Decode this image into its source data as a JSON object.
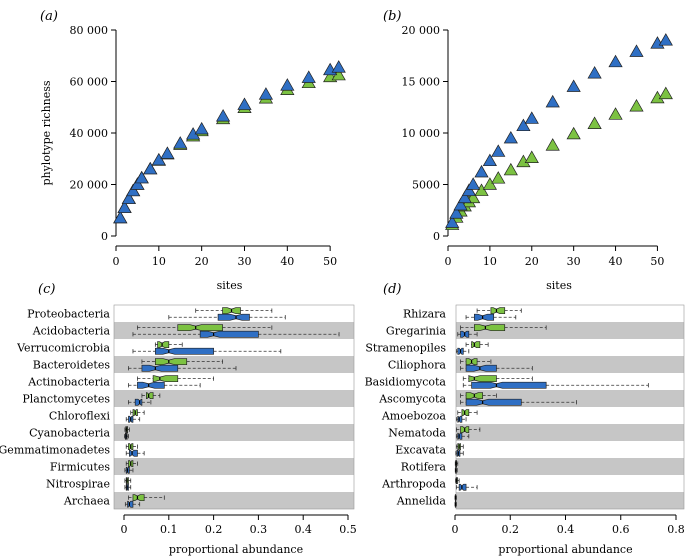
{
  "chart_data": [
    {
      "panel": "(a)",
      "type": "scatter",
      "marker": "triangle",
      "xlabel": "sites",
      "ylabel": "phylotype richness",
      "xlim": [
        0,
        53
      ],
      "ylim": [
        0,
        80000
      ],
      "xticks": [
        "0",
        "10",
        "20",
        "30",
        "40",
        "50"
      ],
      "yticks": [
        "0",
        "20 000",
        "40 000",
        "60 000",
        "80 000"
      ],
      "ytick_values": [
        0,
        20000,
        40000,
        60000,
        80000
      ],
      "xtick_values": [
        0,
        10,
        20,
        30,
        40,
        50
      ],
      "colors": [
        "#2f6fc4",
        "#7cc242"
      ],
      "series": [
        {
          "x": [
            1,
            2,
            3,
            4,
            5,
            6,
            8,
            10,
            12,
            15,
            18,
            20,
            25,
            30,
            35,
            40,
            45,
            50,
            52
          ],
          "values": [
            7000,
            11000,
            14500,
            17500,
            20000,
            22500,
            26000,
            29500,
            32000,
            36000,
            39500,
            41500,
            46500,
            51000,
            55000,
            58500,
            61500,
            64500,
            65500
          ]
        },
        {
          "x": [
            1,
            2,
            3,
            4,
            5,
            6,
            8,
            10,
            12,
            15,
            18,
            20,
            25,
            30,
            35,
            40,
            45,
            50,
            52
          ],
          "values": [
            7000,
            11000,
            14500,
            17500,
            20000,
            22500,
            26000,
            29300,
            31800,
            35500,
            38800,
            40800,
            45500,
            49800,
            53500,
            56800,
            59500,
            61800,
            62500
          ]
        }
      ]
    },
    {
      "panel": "(b)",
      "type": "scatter",
      "marker": "triangle",
      "xlabel": "sites",
      "ylabel": "",
      "xlim": [
        0,
        53
      ],
      "ylim": [
        0,
        20000
      ],
      "xticks": [
        "0",
        "10",
        "20",
        "30",
        "40",
        "50"
      ],
      "yticks": [
        "0",
        "5000",
        "10 000",
        "15 000",
        "20 000"
      ],
      "ytick_values": [
        0,
        5000,
        10000,
        15000,
        20000
      ],
      "xtick_values": [
        0,
        10,
        20,
        30,
        40,
        50
      ],
      "colors": [
        "#2f6fc4",
        "#7cc242"
      ],
      "series": [
        {
          "x": [
            1,
            2,
            3,
            4,
            5,
            6,
            8,
            10,
            12,
            15,
            18,
            20,
            25,
            30,
            35,
            40,
            45,
            50,
            52
          ],
          "values": [
            1300,
            2200,
            3000,
            3700,
            4400,
            5000,
            6200,
            7300,
            8200,
            9500,
            10700,
            11400,
            13000,
            14500,
            15800,
            16900,
            17900,
            18700,
            19000
          ]
        },
        {
          "x": [
            1,
            2,
            3,
            4,
            5,
            6,
            8,
            10,
            12,
            15,
            18,
            20,
            25,
            30,
            35,
            40,
            45,
            50,
            52
          ],
          "values": [
            1100,
            1800,
            2400,
            2900,
            3300,
            3700,
            4400,
            5000,
            5600,
            6400,
            7200,
            7600,
            8800,
            9900,
            10900,
            11800,
            12600,
            13400,
            13800
          ]
        }
      ]
    },
    {
      "panel": "(c)",
      "type": "box",
      "xlabel": "proportional abundance",
      "xlim": [
        0,
        0.5
      ],
      "xticks": [
        "0",
        "0.1",
        "0.2",
        "0.3",
        "0.4",
        "0.5"
      ],
      "xtick_values": [
        0,
        0.1,
        0.2,
        0.3,
        0.4,
        0.5
      ],
      "colors": [
        "#7cc242",
        "#2f6fc4"
      ],
      "categories": [
        "Proteobacteria",
        "Acidobacteria",
        "Verrucomicrobia",
        "Bacteroidetes",
        "Actinobacteria",
        "Planctomycetes",
        "Chloroflexi",
        "Cyanobacteria",
        "Gemmatimonadetes",
        "Firmicutes",
        "Nitrospirae",
        "Archaea"
      ],
      "boxes": [
        [
          [
            0.16,
            0.22,
            0.24,
            0.26,
            0.33
          ],
          [
            0.1,
            0.21,
            0.25,
            0.28,
            0.36
          ]
        ],
        [
          [
            0.03,
            0.12,
            0.16,
            0.22,
            0.33
          ],
          [
            0.02,
            0.17,
            0.2,
            0.3,
            0.48
          ]
        ],
        [
          [
            0.07,
            0.075,
            0.085,
            0.1,
            0.13
          ],
          [
            0.02,
            0.07,
            0.1,
            0.2,
            0.35
          ]
        ],
        [
          [
            0.04,
            0.07,
            0.1,
            0.14,
            0.22
          ],
          [
            0.01,
            0.04,
            0.07,
            0.12,
            0.25
          ]
        ],
        [
          [
            0.03,
            0.065,
            0.08,
            0.12,
            0.2
          ],
          [
            0.01,
            0.03,
            0.055,
            0.09,
            0.17
          ]
        ],
        [
          [
            0.04,
            0.05,
            0.055,
            0.065,
            0.08
          ],
          [
            0.01,
            0.025,
            0.035,
            0.04,
            0.06
          ]
        ],
        [
          [
            0.015,
            0.02,
            0.025,
            0.03,
            0.045
          ],
          [
            0.005,
            0.01,
            0.015,
            0.02,
            0.035
          ]
        ],
        [
          [
            0.002,
            0.004,
            0.006,
            0.008,
            0.012
          ],
          [
            0.001,
            0.003,
            0.005,
            0.007,
            0.01
          ]
        ],
        [
          [
            0.005,
            0.01,
            0.015,
            0.02,
            0.03
          ],
          [
            0.005,
            0.012,
            0.018,
            0.03,
            0.045
          ]
        ],
        [
          [
            0.005,
            0.01,
            0.015,
            0.02,
            0.03
          ],
          [
            0.002,
            0.005,
            0.008,
            0.012,
            0.02
          ]
        ],
        [
          [
            0.002,
            0.005,
            0.007,
            0.01,
            0.015
          ],
          [
            0.002,
            0.005,
            0.007,
            0.01,
            0.015
          ]
        ],
        [
          [
            0.01,
            0.02,
            0.03,
            0.045,
            0.09
          ],
          [
            0.003,
            0.008,
            0.012,
            0.02,
            0.035
          ]
        ]
      ]
    },
    {
      "panel": "(d)",
      "type": "box",
      "xlabel": "proportional abundance",
      "xlim": [
        0,
        0.8
      ],
      "xticks": [
        "0",
        "0.2",
        "0.4",
        "0.6",
        "0.8"
      ],
      "xtick_values": [
        0,
        0.2,
        0.4,
        0.6,
        0.8
      ],
      "colors": [
        "#7cc242",
        "#2f6fc4"
      ],
      "categories": [
        "Rhizara",
        "Gregarinia",
        "Stramenopiles",
        "Ciliophora",
        "Basidiomycota",
        "Ascomycota",
        "Amoebozoa",
        "Nematoda",
        "Excavata",
        "Rotifera",
        "Arthropoda",
        "Annelida"
      ],
      "boxes": [
        [
          [
            0.08,
            0.13,
            0.15,
            0.18,
            0.24
          ],
          [
            0.04,
            0.07,
            0.1,
            0.14,
            0.22
          ]
        ],
        [
          [
            0.02,
            0.07,
            0.11,
            0.18,
            0.33
          ],
          [
            0.01,
            0.02,
            0.035,
            0.05,
            0.08
          ]
        ],
        [
          [
            0.04,
            0.06,
            0.07,
            0.09,
            0.12
          ],
          [
            0.005,
            0.01,
            0.02,
            0.03,
            0.05
          ]
        ],
        [
          [
            0.02,
            0.04,
            0.06,
            0.08,
            0.13
          ],
          [
            0.02,
            0.04,
            0.09,
            0.15,
            0.28
          ]
        ],
        [
          [
            0.03,
            0.05,
            0.07,
            0.15,
            0.28
          ],
          [
            0.03,
            0.06,
            0.15,
            0.33,
            0.7
          ]
        ],
        [
          [
            0.02,
            0.04,
            0.07,
            0.1,
            0.15
          ],
          [
            0.02,
            0.04,
            0.1,
            0.24,
            0.44
          ]
        ],
        [
          [
            0.01,
            0.025,
            0.035,
            0.05,
            0.08
          ],
          [
            0.005,
            0.01,
            0.015,
            0.025,
            0.04
          ]
        ],
        [
          [
            0.005,
            0.02,
            0.035,
            0.05,
            0.09
          ],
          [
            0.005,
            0.01,
            0.015,
            0.025,
            0.05
          ]
        ],
        [
          [
            0.005,
            0.01,
            0.015,
            0.02,
            0.03
          ],
          [
            0.003,
            0.007,
            0.012,
            0.018,
            0.03
          ]
        ],
        [
          [
            0.001,
            0.002,
            0.004,
            0.006,
            0.01
          ],
          [
            0.001,
            0.002,
            0.003,
            0.005,
            0.008
          ]
        ],
        [
          [
            0.002,
            0.004,
            0.006,
            0.009,
            0.015
          ],
          [
            0.005,
            0.015,
            0.025,
            0.04,
            0.08
          ]
        ],
        [
          [
            0.0,
            0.001,
            0.002,
            0.003,
            0.005
          ],
          [
            0.0,
            0.001,
            0.002,
            0.003,
            0.005
          ]
        ]
      ]
    }
  ]
}
